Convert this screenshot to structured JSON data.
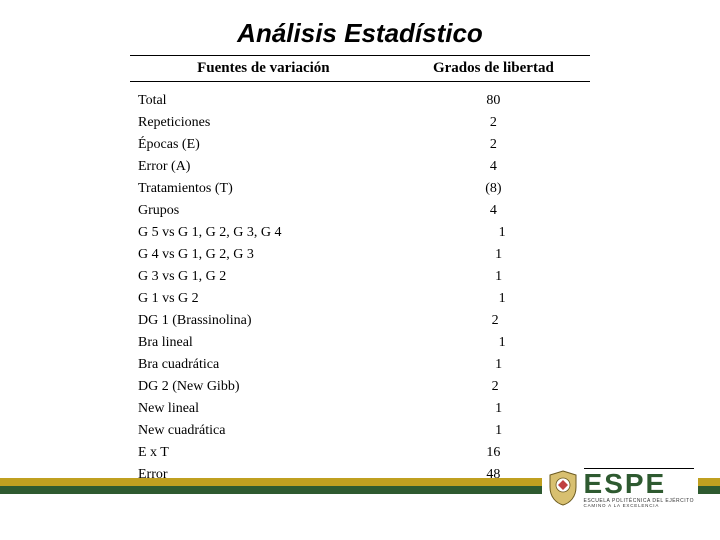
{
  "title": "Análisis Estadístico",
  "table": {
    "headers": {
      "left": "Fuentes de variación",
      "right": "Grados de libertad"
    },
    "rows": [
      {
        "label": "Total",
        "value": "80"
      },
      {
        "label": "Repeticiones",
        "value": "2"
      },
      {
        "label": "Épocas  (E)",
        "value": "2"
      },
      {
        "label": "Error (A)",
        "value": "4"
      },
      {
        "label": "Tratamientos (T)",
        "value": "(8)"
      },
      {
        "label": "Grupos",
        "value": "4"
      },
      {
        "label": "G 5 vs G 1, G 2, G 3, G 4",
        "value": "     1"
      },
      {
        "label": "G 4 vs G 1, G 2, G 3",
        "value": "   1"
      },
      {
        "label": "G 3 vs G 1, G 2",
        "value": "   1"
      },
      {
        "label": "G 1 vs G 2",
        "value": "     1"
      },
      {
        "label": "DG 1 (Brassinolina)",
        "value": " 2"
      },
      {
        "label": "Bra lineal",
        "value": "     1"
      },
      {
        "label": "Bra cuadrática",
        "value": "   1"
      },
      {
        "label": "DG 2 (New Gibb)",
        "value": " 2"
      },
      {
        "label": "New lineal",
        "value": "   1"
      },
      {
        "label": "New cuadrática",
        "value": "   1"
      },
      {
        "label": "E x T",
        "value": "16"
      },
      {
        "label": "Error",
        "value": "48"
      }
    ]
  },
  "logo": {
    "name": "ESPE",
    "sub1": "ESCUELA POLITÉCNICA DEL EJÉRCITO",
    "sub2": "CAMINO A LA EXCELENCIA"
  },
  "colors": {
    "accent_yellow": "#c0a020",
    "accent_green": "#2e5a30"
  }
}
